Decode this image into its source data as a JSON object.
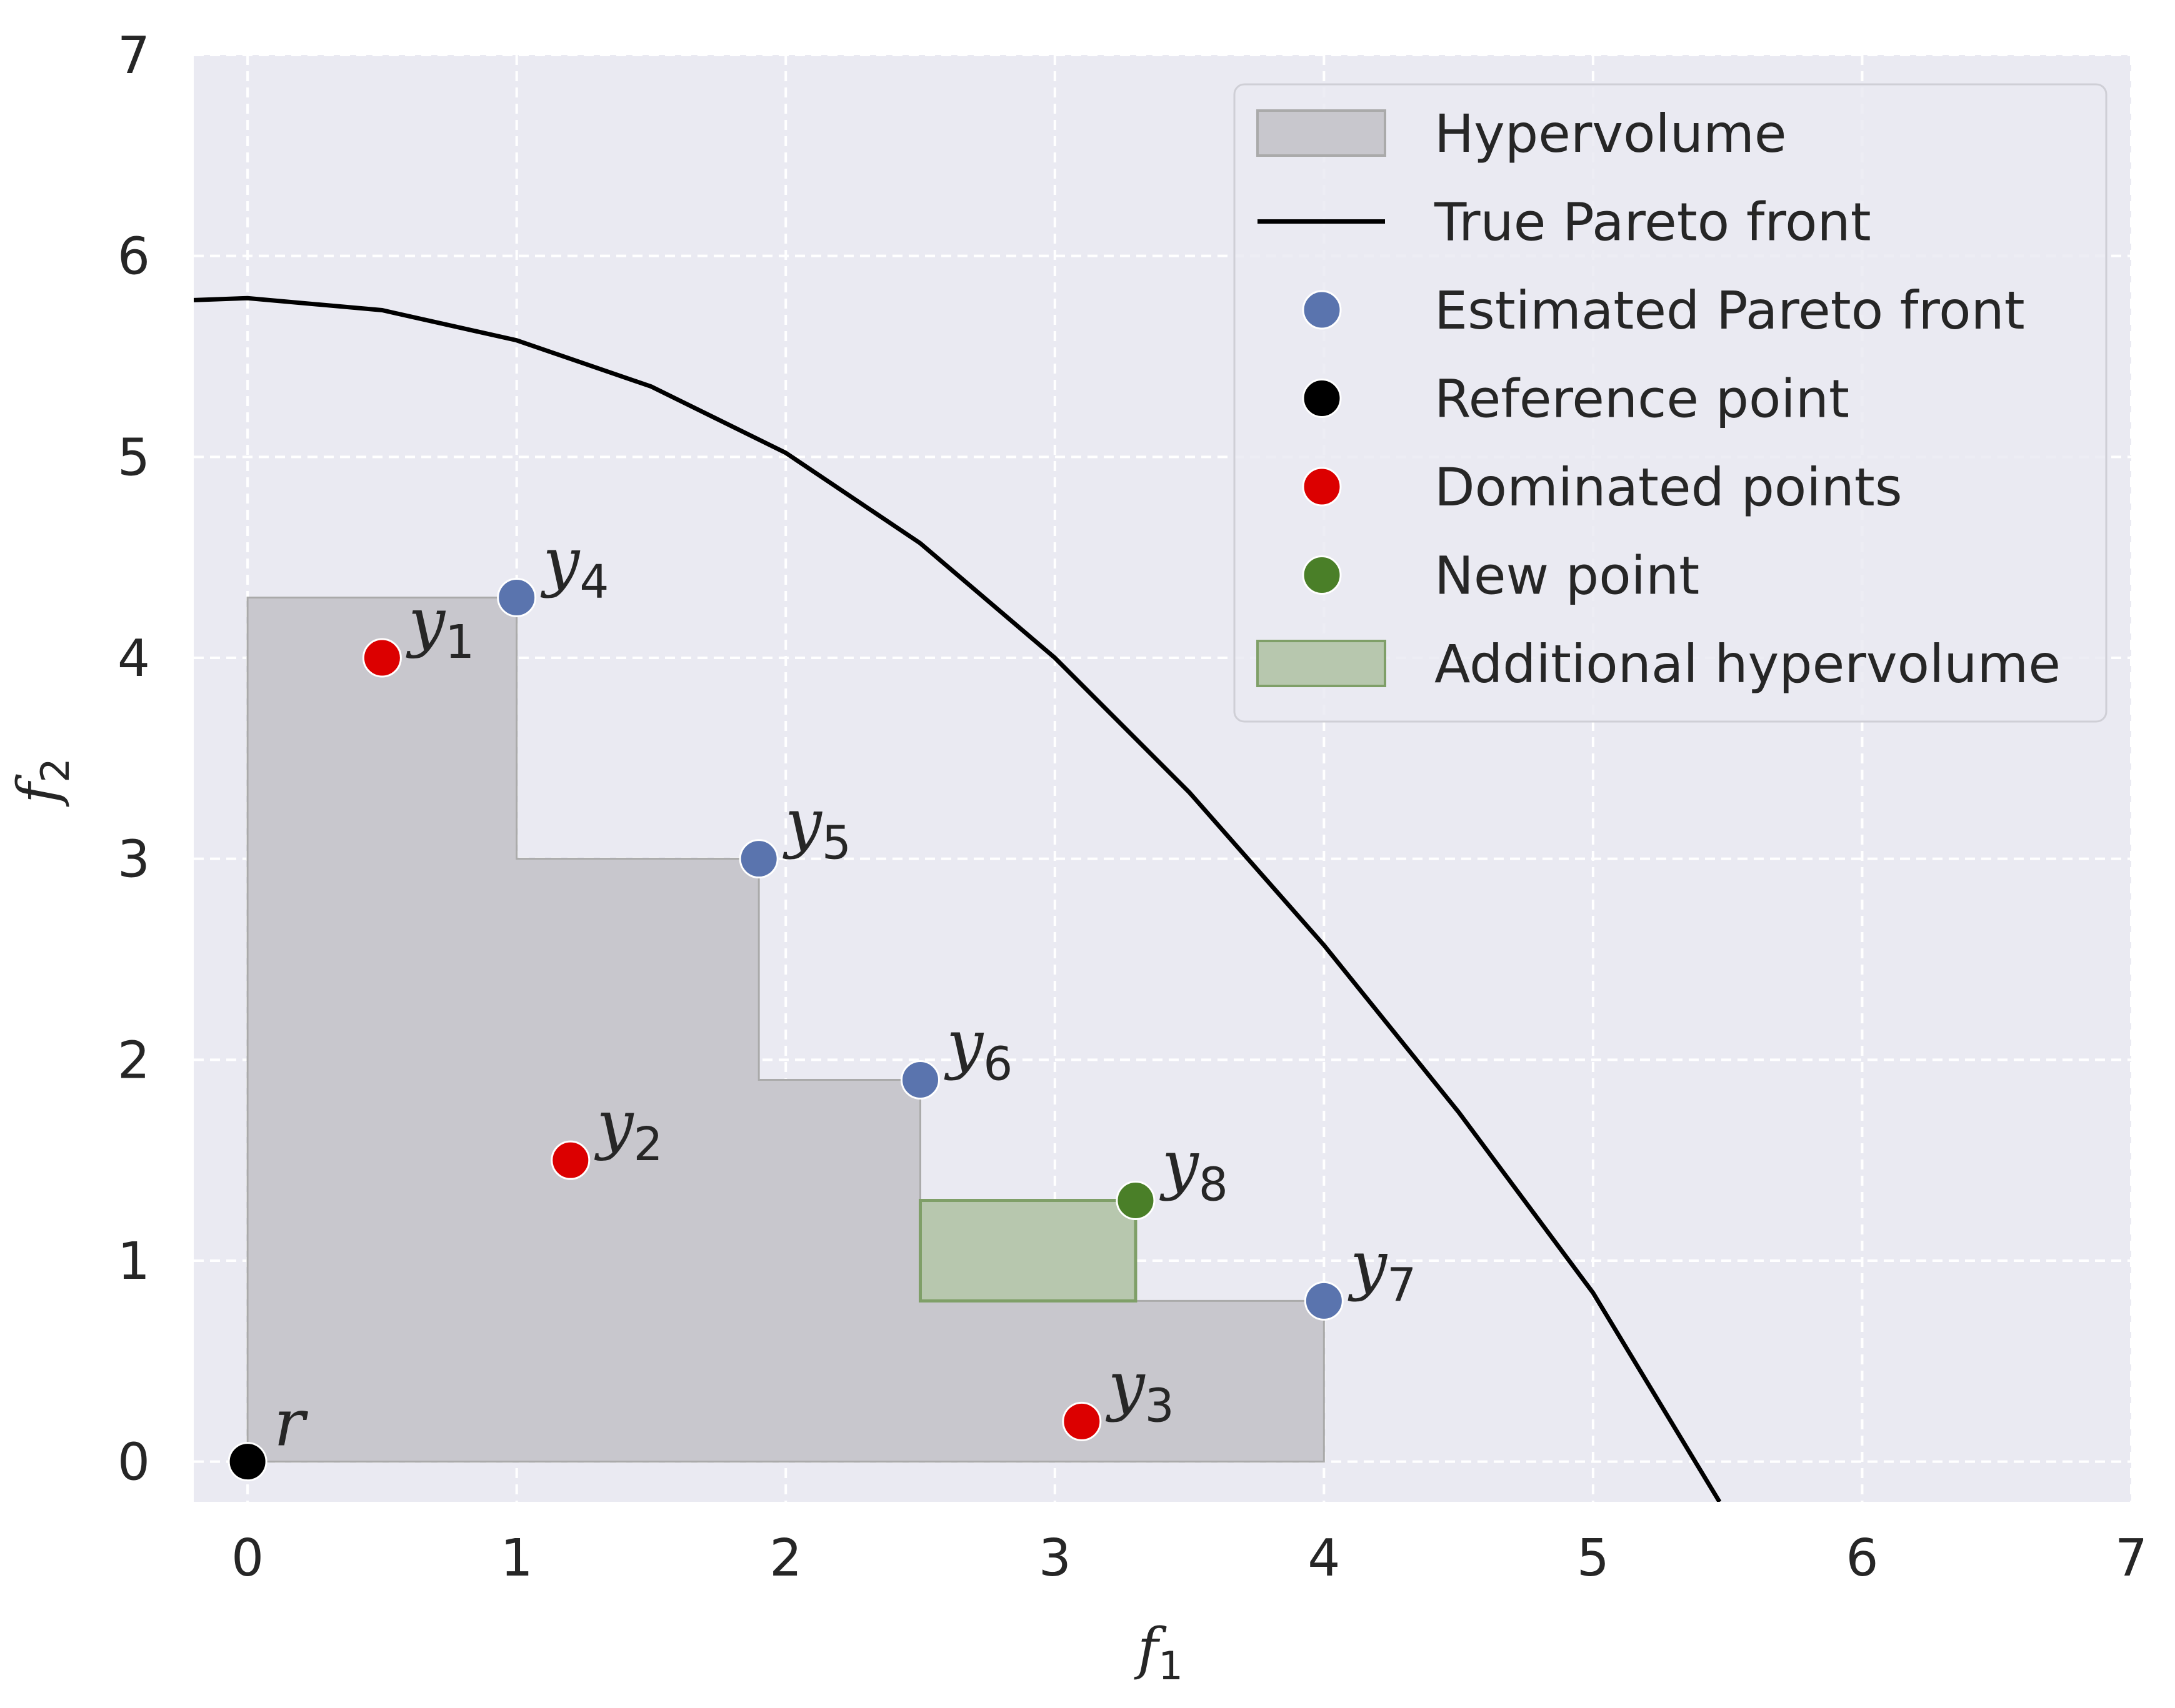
{
  "chart_data": {
    "type": "scatter",
    "xlabel": {
      "main": "f",
      "sub": "1"
    },
    "ylabel": {
      "main": "f",
      "sub": "2"
    },
    "xlim": [
      -0.2,
      7
    ],
    "ylim": [
      -0.2,
      7
    ],
    "xticks": [
      0,
      1,
      2,
      3,
      4,
      5,
      6,
      7
    ],
    "yticks": [
      0,
      1,
      2,
      3,
      4,
      5,
      6,
      7
    ],
    "grid": true,
    "grid_style": "dashed",
    "legend_position": "top-right",
    "colors": {
      "background": "#eaeaf2",
      "grid": "#ffffff",
      "hypervolume": "#c8c7cd",
      "hypervolume_edge": "#aaaaaa",
      "pareto_line": "#000000",
      "estimated": "#5a74ae",
      "reference": "#000000",
      "dominated": "#dc0000",
      "new_point": "#4a7f28",
      "additional_fill": "#b7c7ae",
      "additional_edge": "#7f9f68"
    },
    "legend": [
      {
        "key": "hypervolume",
        "label": "Hypervolume",
        "marker": "patch"
      },
      {
        "key": "pareto",
        "label": "True Pareto front",
        "marker": "line"
      },
      {
        "key": "estimated",
        "label": "Estimated Pareto front",
        "marker": "dot"
      },
      {
        "key": "reference",
        "label": "Reference point",
        "marker": "dot"
      },
      {
        "key": "dominated",
        "label": "Dominated points",
        "marker": "dot"
      },
      {
        "key": "new",
        "label": "New point",
        "marker": "dot"
      },
      {
        "key": "additional",
        "label": "Additional hypervolume",
        "marker": "patch"
      }
    ],
    "true_pareto_front": {
      "name": "True Pareto front",
      "x": [
        -0.2,
        0,
        0.5,
        1,
        1.5,
        2,
        2.5,
        3,
        3.5,
        4,
        4.5,
        5,
        5.47
      ],
      "y": [
        5.78,
        5.79,
        5.73,
        5.58,
        5.35,
        5.02,
        4.57,
        4.0,
        3.33,
        2.57,
        1.74,
        0.84,
        -0.2
      ]
    },
    "hypervolume_region": [
      [
        0,
        0
      ],
      [
        0,
        4.3
      ],
      [
        1,
        4.3
      ],
      [
        1,
        3
      ],
      [
        1.9,
        3
      ],
      [
        1.9,
        1.9
      ],
      [
        2.5,
        1.9
      ],
      [
        2.5,
        0.8
      ],
      [
        4,
        0.8
      ],
      [
        4,
        0
      ]
    ],
    "additional_hypervolume": {
      "x": [
        2.5,
        3.3
      ],
      "y": [
        0.8,
        1.3
      ]
    },
    "points": [
      {
        "group": "reference",
        "label": "r",
        "sub": "",
        "x": 0,
        "y": 0
      },
      {
        "group": "dominated",
        "label": "y",
        "sub": "1",
        "x": 0.5,
        "y": 4.0
      },
      {
        "group": "dominated",
        "label": "y",
        "sub": "2",
        "x": 1.2,
        "y": 1.5
      },
      {
        "group": "dominated",
        "label": "y",
        "sub": "3",
        "x": 3.1,
        "y": 0.2
      },
      {
        "group": "estimated",
        "label": "y",
        "sub": "4",
        "x": 1.0,
        "y": 4.3
      },
      {
        "group": "estimated",
        "label": "y",
        "sub": "5",
        "x": 1.9,
        "y": 3.0
      },
      {
        "group": "estimated",
        "label": "y",
        "sub": "6",
        "x": 2.5,
        "y": 1.9
      },
      {
        "group": "estimated",
        "label": "y",
        "sub": "7",
        "x": 4.0,
        "y": 0.8
      },
      {
        "group": "new",
        "label": "y",
        "sub": "8",
        "x": 3.3,
        "y": 1.3
      }
    ]
  }
}
